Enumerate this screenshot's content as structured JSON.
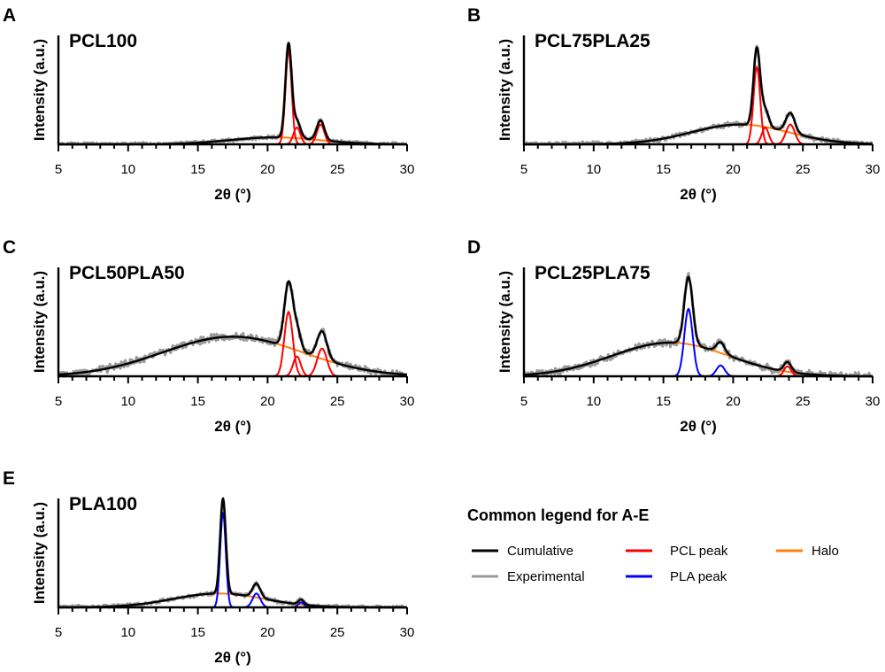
{
  "legend": {
    "title": "Common legend for A-E",
    "items": [
      {
        "label": "Cumulative",
        "color": "#000000"
      },
      {
        "label": "Experimental",
        "color": "#9a9a9a"
      },
      {
        "label": "PCL peak",
        "color": "#ff0000"
      },
      {
        "label": "PLA peak",
        "color": "#0000ff"
      },
      {
        "label": "Halo",
        "color": "#ff7f0e"
      }
    ]
  },
  "chart_data": [
    {
      "type": "line",
      "panel": "A",
      "title": "PCL100",
      "xlabel": "2θ (°)",
      "ylabel": "Intensity (a.u.)",
      "xlim": [
        5,
        30
      ],
      "xticks": [
        5,
        10,
        15,
        20,
        25,
        30
      ],
      "ylim": [
        0,
        1.1
      ],
      "halo": {
        "center": 20.5,
        "width": 3.2,
        "height": 0.07,
        "start": 14.5,
        "end": 25.5
      },
      "pcl_peaks": [
        {
          "center": 21.5,
          "width": 0.22,
          "height": 0.95
        },
        {
          "center": 22.1,
          "width": 0.25,
          "height": 0.17
        },
        {
          "center": 23.8,
          "width": 0.27,
          "height": 0.2
        }
      ],
      "pla_peaks": [],
      "noise": 0.015
    },
    {
      "type": "line",
      "panel": "B",
      "title": "PCL75PLA25",
      "xlabel": "2θ (°)",
      "ylabel": "Intensity (a.u.)",
      "xlim": [
        5,
        30
      ],
      "xticks": [
        5,
        10,
        15,
        20,
        25,
        30
      ],
      "ylim": [
        0,
        1.1
      ],
      "halo": {
        "center": 20.5,
        "width": 3.5,
        "height": 0.2,
        "start": 13.0,
        "end": 27.0
      },
      "pcl_peaks": [
        {
          "center": 21.7,
          "width": 0.24,
          "height": 0.78
        },
        {
          "center": 22.3,
          "width": 0.25,
          "height": 0.17
        },
        {
          "center": 24.1,
          "width": 0.32,
          "height": 0.2
        }
      ],
      "pla_peaks": [],
      "noise": 0.02
    },
    {
      "type": "line",
      "panel": "C",
      "title": "PCL50PLA50",
      "xlabel": "2θ (°)",
      "ylabel": "Intensity (a.u.)",
      "xlim": [
        5,
        30
      ],
      "xticks": [
        5,
        10,
        15,
        20,
        25,
        30
      ],
      "ylim": [
        0,
        1.1
      ],
      "halo": {
        "center": 17.5,
        "width": 5.0,
        "height": 0.4,
        "start": 5.0,
        "end": 30.0
      },
      "pcl_peaks": [
        {
          "center": 21.5,
          "width": 0.3,
          "height": 0.65
        },
        {
          "center": 22.1,
          "width": 0.28,
          "height": 0.2
        },
        {
          "center": 23.9,
          "width": 0.35,
          "height": 0.28
        }
      ],
      "pla_peaks": [],
      "noise": 0.03
    },
    {
      "type": "line",
      "panel": "D",
      "title": "PCL25PLA75",
      "xlabel": "2θ (°)",
      "ylabel": "Intensity (a.u.)",
      "xlim": [
        5,
        30
      ],
      "xticks": [
        5,
        10,
        15,
        20,
        25,
        30
      ],
      "ylim": [
        0,
        1.1
      ],
      "halo": {
        "center": 15.5,
        "width": 4.2,
        "height": 0.34,
        "start": 8.0,
        "end": 26.0
      },
      "pcl_peaks": [
        {
          "center": 23.9,
          "width": 0.26,
          "height": 0.1
        }
      ],
      "pla_peaks": [
        {
          "center": 16.8,
          "width": 0.3,
          "height": 0.68
        },
        {
          "center": 19.1,
          "width": 0.3,
          "height": 0.11
        }
      ],
      "noise": 0.03
    },
    {
      "type": "line",
      "panel": "E",
      "title": "PLA100",
      "xlabel": "2θ (°)",
      "ylabel": "Intensity (a.u.)",
      "xlim": [
        5,
        30
      ],
      "xticks": [
        5,
        10,
        15,
        20,
        25,
        30
      ],
      "ylim": [
        0,
        1.1
      ],
      "halo": {
        "center": 16.5,
        "width": 3.3,
        "height": 0.14,
        "start": 10.5,
        "end": 23.0
      },
      "pcl_peaks": [],
      "pla_peaks": [
        {
          "center": 16.8,
          "width": 0.2,
          "height": 0.96
        },
        {
          "center": 19.2,
          "width": 0.28,
          "height": 0.14
        },
        {
          "center": 22.4,
          "width": 0.2,
          "height": 0.05
        }
      ],
      "noise": 0.015
    }
  ]
}
